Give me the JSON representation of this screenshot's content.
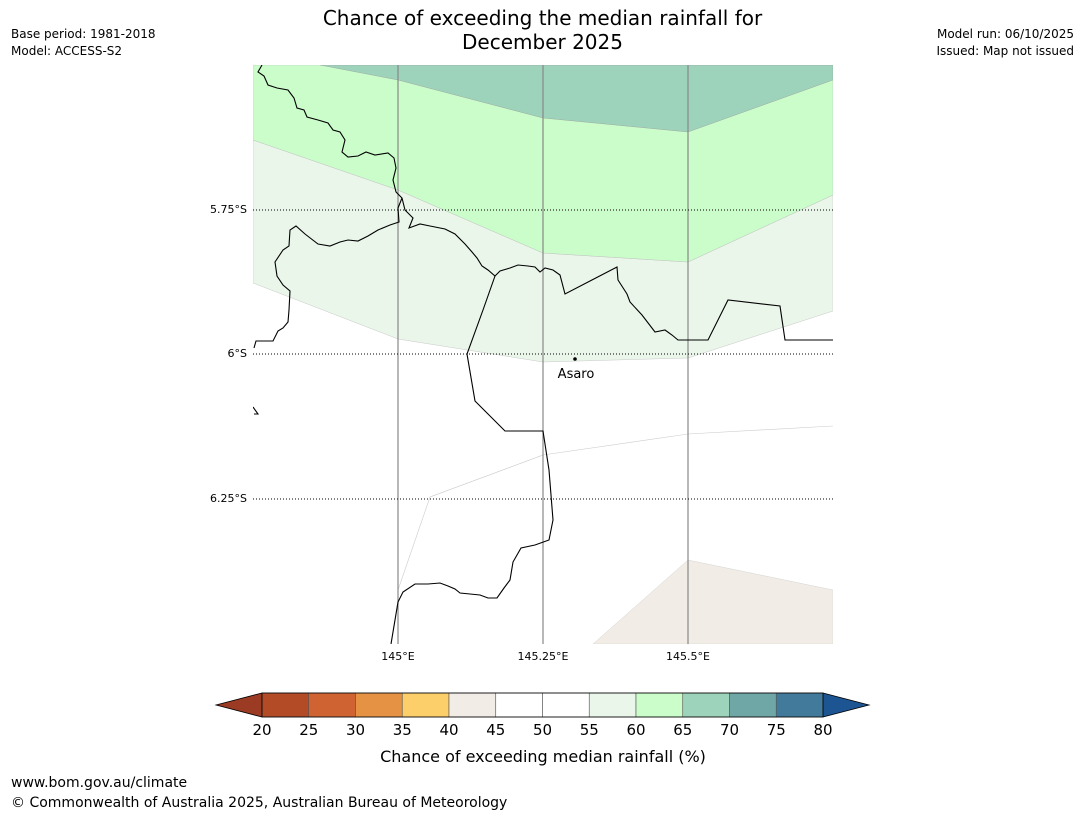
{
  "title": {
    "line1": "Chance of exceeding the median rainfall for",
    "line2": "December 2025"
  },
  "meta_left": {
    "base_period": "Base period: 1981-2018",
    "model": "Model: ACCESS-S2"
  },
  "meta_right": {
    "model_run": "Model run: 06/10/2025",
    "issued": "Issued: Map not issued"
  },
  "map": {
    "lat_labels": [
      "5.75°S",
      "6°S",
      "6.25°S"
    ],
    "lon_labels": [
      "145°E",
      "145.25°E",
      "145.5°E"
    ],
    "place": "Asaro"
  },
  "colorbar": {
    "label": "Chance of exceeding median rainfall (%)",
    "ticks": [
      "20",
      "25",
      "30",
      "35",
      "40",
      "45",
      "50",
      "55",
      "60",
      "65",
      "70",
      "75",
      "80"
    ],
    "colors": [
      "#b24b26",
      "#d06332",
      "#e59244",
      "#fdcf6b",
      "#f1ece5",
      "#ffffff",
      "#ffffff",
      "#eaf6ea",
      "#cbfdcb",
      "#9ed3bb",
      "#6fa7a7",
      "#427a9b"
    ],
    "under_color": "#9b3b24",
    "over_color": "#1c5592"
  },
  "zone_colors": {
    "dark_green": "#9ed3bb",
    "light_green": "#cbfdcb",
    "pale_green": "#eaf6ea",
    "beige": "#f1ece5"
  },
  "footer": {
    "url": "www.bom.gov.au/climate",
    "copyright": "© Commonwealth of Australia 2025, Australian Bureau of Meteorology"
  }
}
